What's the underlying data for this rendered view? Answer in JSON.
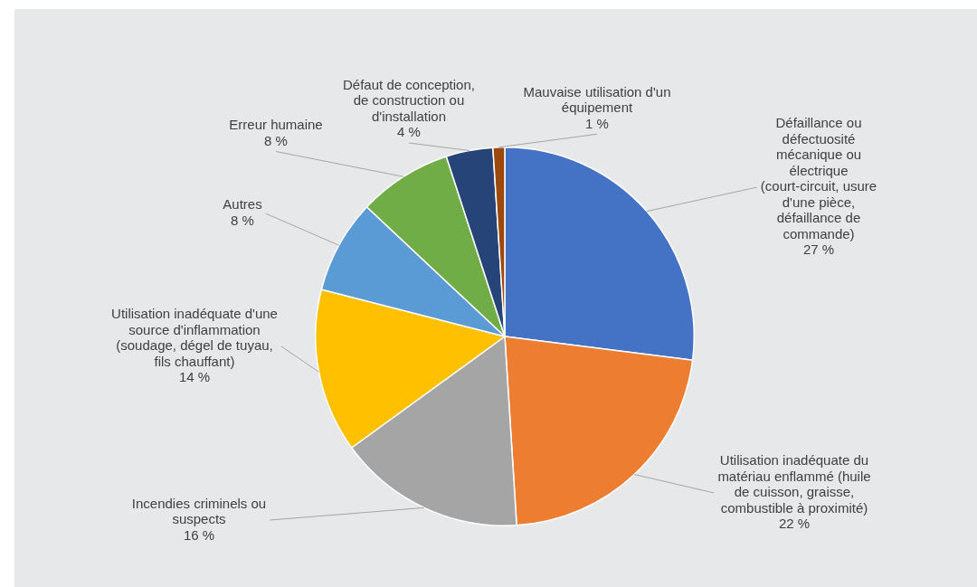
{
  "chart_data": {
    "type": "pie",
    "categories": [
      "Défaillance ou défectuosité mécanique ou électrique (court-circuit, usure d'une pièce, défaillance de commande)",
      "Utilisation inadéquate du matériau enflammé (huile de cuisson, graisse, combustible à proximité)",
      "Incendies criminels ou suspects",
      "Utilisation inadéquate d'une source d'inflammation (soudage, dégel de tuyau, fils chauffant)",
      "Autres",
      "Erreur humaine",
      "Défaut de conception, de construction ou d'installation",
      "Mauvaise utilisation d'un équipement"
    ],
    "values": [
      27,
      22,
      16,
      14,
      8,
      8,
      4,
      1
    ],
    "value_labels": [
      "27 %",
      "22 %",
      "16 %",
      "14 %",
      "8 %",
      "8 %",
      "4 %",
      "1 %"
    ],
    "colors": [
      "#4472c4",
      "#ed7d31",
      "#a5a5a5",
      "#ffc000",
      "#5b9bd5",
      "#70ad47",
      "#264478",
      "#9e480e"
    ],
    "legend": false
  }
}
